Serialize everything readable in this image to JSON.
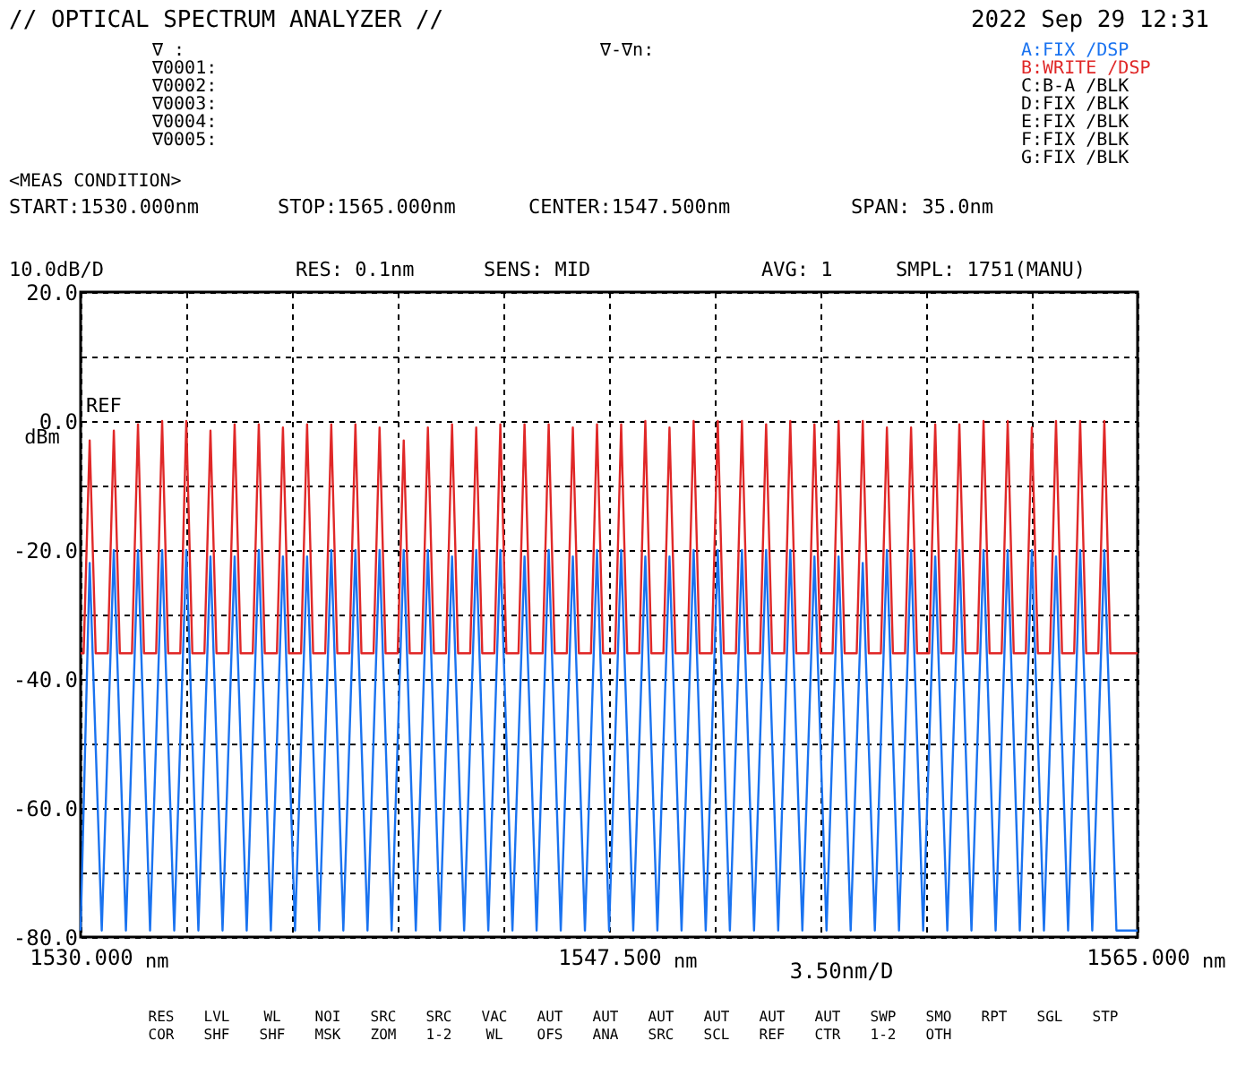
{
  "chart_data": {
    "type": "line",
    "title": "// OPTICAL SPECTRUM ANALYZER //",
    "subtitle": "2022 Sep 29 12:31",
    "ylabel": "dBm",
    "xlabel": "nm",
    "xlim": [
      1530,
      1565
    ],
    "xticks": [
      {
        "value": 1530,
        "label": "1530.000"
      },
      {
        "value": 1533.5,
        "label": null
      },
      {
        "value": 1537,
        "label": null
      },
      {
        "value": 1540.5,
        "label": null
      },
      {
        "value": 1544,
        "label": null
      },
      {
        "value": 1547.5,
        "label": "1547.500"
      },
      {
        "value": 1551,
        "label": null
      },
      {
        "value": 1554.5,
        "label": null
      },
      {
        "value": 1558,
        "label": null
      },
      {
        "value": 1561.5,
        "label": null
      },
      {
        "value": 1565,
        "label": "1565.000"
      }
    ],
    "ylim": [
      -80,
      20
    ],
    "yticks": [
      {
        "value": 20,
        "label": "20.0"
      },
      {
        "value": 10,
        "label": null
      },
      {
        "value": 0,
        "label": "0.0"
      },
      {
        "value": -10,
        "label": null
      },
      {
        "value": -20,
        "label": "-20.0"
      },
      {
        "value": -30,
        "label": null
      },
      {
        "value": -40,
        "label": "-40.0"
      },
      {
        "value": -50,
        "label": null
      },
      {
        "value": -60,
        "label": "-60.0"
      },
      {
        "value": -70,
        "label": null
      },
      {
        "value": -80,
        "label": "-80.0"
      }
    ],
    "grid": true,
    "line_style": "solid",
    "series": [
      {
        "name": "B:WRITE /DSP",
        "color": "#e02828",
        "x": [
          1530.0,
          1530.1,
          1530.3,
          1530.5,
          1530.9,
          1531.1,
          1531.3,
          1531.7,
          1531.9,
          1532.1,
          1532.5,
          1532.7,
          1532.9,
          1533.3,
          1533.5,
          1533.7,
          1534.1,
          1534.3,
          1534.5,
          1534.9,
          1535.1,
          1535.3,
          1535.7,
          1535.9,
          1536.1,
          1536.5,
          1536.7,
          1536.9,
          1537.3,
          1537.5,
          1537.7,
          1538.1,
          1538.3,
          1538.5,
          1538.9,
          1539.1,
          1539.3,
          1539.7,
          1539.9,
          1540.1,
          1540.5,
          1540.7,
          1540.9,
          1541.3,
          1541.5,
          1541.7,
          1542.1,
          1542.3,
          1542.5,
          1542.9,
          1543.1,
          1543.3,
          1543.7,
          1543.9,
          1544.1,
          1544.5,
          1544.7,
          1544.9,
          1545.3,
          1545.5,
          1545.7,
          1546.1,
          1546.3,
          1546.5,
          1546.9,
          1547.1,
          1547.3,
          1547.7,
          1547.9,
          1548.1,
          1548.5,
          1548.7,
          1548.9,
          1549.3,
          1549.5,
          1549.7,
          1550.1,
          1550.3,
          1550.5,
          1550.9,
          1551.1,
          1551.3,
          1551.7,
          1551.9,
          1552.1,
          1552.5,
          1552.7,
          1552.9,
          1553.3,
          1553.5,
          1553.7,
          1554.1,
          1554.3,
          1554.5,
          1554.9,
          1555.1,
          1555.3,
          1555.7,
          1555.9,
          1556.1,
          1556.5,
          1556.7,
          1556.9,
          1557.3,
          1557.5,
          1557.7,
          1558.1,
          1558.3,
          1558.5,
          1558.9,
          1559.1,
          1559.3,
          1559.7,
          1559.9,
          1560.1,
          1560.5,
          1560.7,
          1560.9,
          1561.3,
          1561.5,
          1561.7,
          1562.1,
          1562.3,
          1562.5,
          1562.9,
          1563.1,
          1563.3,
          1563.7,
          1563.9,
          1564.1,
          1565.0
        ],
        "values": [
          -36,
          -36,
          -3,
          -36,
          -36,
          -1.5,
          -36,
          -36,
          -0.5,
          -36,
          -36,
          0,
          -36,
          -36,
          0,
          -36,
          -36,
          -1.5,
          -36,
          -36,
          -0.5,
          -36,
          -36,
          -0.5,
          -36,
          -36,
          -1,
          -36,
          -36,
          -0.5,
          -36,
          -36,
          -0.5,
          -36,
          -36,
          -0.5,
          -36,
          -36,
          -1,
          -36,
          -36,
          -3,
          -36,
          -36,
          -1,
          -36,
          -36,
          -0.5,
          -36,
          -36,
          -1,
          -36,
          -36,
          -0.5,
          -36,
          -36,
          -0.5,
          -36,
          -36,
          -0.5,
          -36,
          -36,
          -1,
          -36,
          -36,
          -0.5,
          -36,
          -36,
          -0.5,
          -36,
          -36,
          0,
          -36,
          -36,
          -1,
          -36,
          -36,
          0,
          -36,
          -36,
          0,
          -36,
          -36,
          0,
          -36,
          -36,
          -0.5,
          -36,
          -36,
          0,
          -36,
          -36,
          -0.5,
          -36,
          -36,
          0,
          -36,
          -36,
          0,
          -36,
          -36,
          -1,
          -36,
          -36,
          -1,
          -36,
          -36,
          -0.5,
          -36,
          -36,
          -0.5,
          -36,
          -36,
          0,
          -36,
          -36,
          0,
          -36,
          -36,
          -1,
          -36,
          -36,
          0,
          -36,
          -36,
          0,
          -36,
          -36,
          0,
          -36,
          -36
        ]
      },
      {
        "name": "A:FIX /DSP",
        "color": "#1a73f0",
        "x": [
          1530.0,
          1530.3,
          1530.7,
          1531.1,
          1531.5,
          1531.9,
          1532.3,
          1532.7,
          1533.1,
          1533.5,
          1533.9,
          1534.3,
          1534.7,
          1535.1,
          1535.5,
          1535.9,
          1536.3,
          1536.7,
          1537.1,
          1537.5,
          1537.9,
          1538.3,
          1538.7,
          1539.1,
          1539.5,
          1539.9,
          1540.3,
          1540.7,
          1541.1,
          1541.5,
          1541.9,
          1542.3,
          1542.7,
          1543.1,
          1543.5,
          1543.9,
          1544.3,
          1544.7,
          1545.1,
          1545.5,
          1545.9,
          1546.3,
          1546.7,
          1547.1,
          1547.5,
          1547.9,
          1548.3,
          1548.7,
          1549.1,
          1549.5,
          1549.9,
          1550.3,
          1550.7,
          1551.1,
          1551.5,
          1551.9,
          1552.3,
          1552.7,
          1553.1,
          1553.5,
          1553.9,
          1554.3,
          1554.7,
          1555.1,
          1555.5,
          1555.9,
          1556.3,
          1556.7,
          1557.1,
          1557.5,
          1557.9,
          1558.3,
          1558.7,
          1559.1,
          1559.5,
          1559.9,
          1560.3,
          1560.7,
          1561.1,
          1561.5,
          1561.9,
          1562.3,
          1562.7,
          1563.1,
          1563.5,
          1563.9,
          1564.3,
          1565.0
        ],
        "values": [
          -79,
          -22,
          -79,
          -20,
          -79,
          -20,
          -79,
          -20,
          -79,
          -20,
          -79,
          -21,
          -79,
          -21,
          -79,
          -20,
          -79,
          -21,
          -79,
          -21,
          -79,
          -20,
          -79,
          -20,
          -79,
          -20,
          -79,
          -20,
          -79,
          -20,
          -79,
          -21,
          -79,
          -20,
          -79,
          -20,
          -79,
          -21,
          -79,
          -20,
          -79,
          -21,
          -79,
          -20,
          -79,
          -20,
          -79,
          -21,
          -79,
          -21,
          -79,
          -20,
          -79,
          -20,
          -79,
          -20,
          -79,
          -20,
          -79,
          -20,
          -79,
          -21,
          -79,
          -21,
          -79,
          -22,
          -79,
          -20,
          -79,
          -20,
          -79,
          -21,
          -79,
          -20,
          -79,
          -20,
          -79,
          -20,
          -79,
          -20,
          -79,
          -21,
          -79,
          -20,
          -79,
          -20,
          -79,
          -79
        ]
      }
    ],
    "annotations": [
      "∇ :",
      "∇0001:",
      "∇0002:",
      "∇0003:",
      "∇0004:",
      "∇0005:",
      "∇-∇n:",
      "C:B-A /BLK",
      "D:FIX /BLK",
      "E:FIX /BLK",
      "F:FIX /BLK",
      "G:FIX /BLK",
      "<MEAS CONDITION>",
      "START:1530.000nm",
      "STOP:1565.000nm",
      "CENTER:1547.500nm",
      "SPAN: 35.0nm",
      "10.0dB/D",
      "RES: 0.1nm",
      "SENS: MID",
      "AVG: 1",
      "SMPL: 1751(MANU)",
      "3.50nm/D",
      "RES COR",
      "LVL SHF",
      "WL SHF",
      "NOI MSK",
      "SRC ZOM",
      "SRC 1-2",
      "VAC WL",
      "AUT OFS",
      "AUT ANA",
      "AUT SRC",
      "AUT SCL",
      "AUT REF",
      "AUT CTR",
      "SWP 1-2",
      "SMO OTH",
      "RPT",
      "SGL",
      "STP",
      "REF"
    ]
  }
}
